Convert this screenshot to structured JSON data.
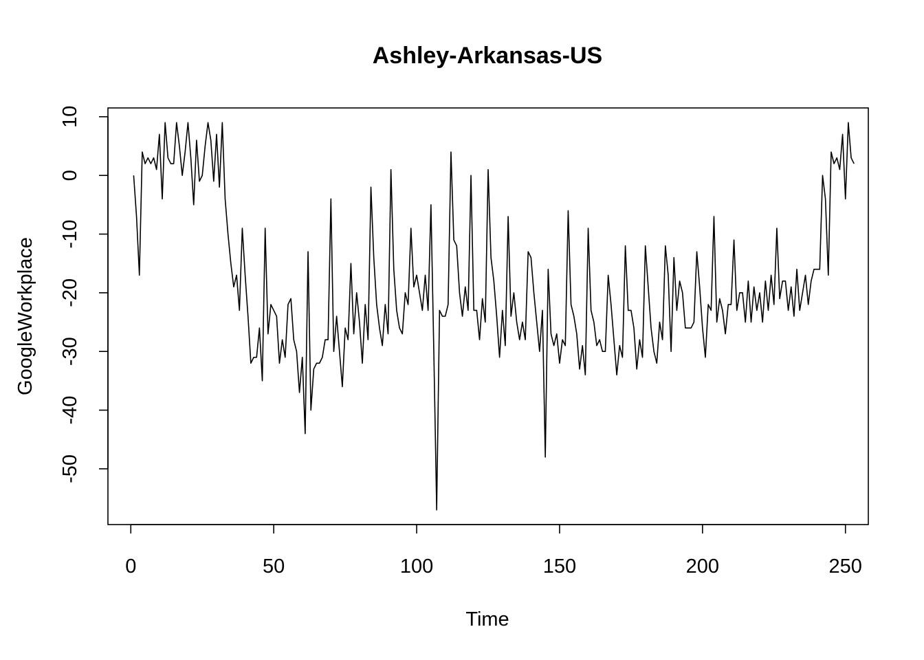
{
  "chart_data": {
    "type": "line",
    "title": "Ashley-Arkansas-US",
    "xlabel": "Time",
    "ylabel": "GoogleWorkplace",
    "xlim": [
      -8,
      258
    ],
    "ylim": [
      -59.5,
      11.5
    ],
    "xticks": [
      0,
      50,
      100,
      150,
      200,
      250
    ],
    "yticks": [
      10,
      0,
      -10,
      -20,
      -30,
      -40,
      -50
    ],
    "grid": false,
    "series": [
      {
        "x_start": 1,
        "values": [
          0,
          -7,
          -17,
          4,
          2,
          3,
          2,
          3,
          1,
          7,
          -4,
          9,
          3,
          2,
          2,
          9,
          5,
          0,
          4,
          9,
          3,
          -5,
          6,
          -1,
          0,
          5,
          9,
          6,
          -1,
          7,
          -2,
          9,
          -4,
          -10,
          -15,
          -19,
          -17,
          -23,
          -9,
          -17,
          -24,
          -32,
          -31,
          -31,
          -26,
          -35,
          -9,
          -27,
          -22,
          -23,
          -24,
          -32,
          -28,
          -31,
          -22,
          -21,
          -28,
          -30,
          -37,
          -31,
          -44,
          -13,
          -40,
          -33,
          -32,
          -32,
          -31,
          -28,
          -28,
          -4,
          -30,
          -24,
          -30,
          -36,
          -26,
          -28,
          -15,
          -27,
          -20,
          -25,
          -32,
          -22,
          -28,
          -2,
          -14,
          -22,
          -26,
          -29,
          -22,
          -27,
          1,
          -16,
          -23,
          -26,
          -27,
          -20,
          -22,
          -9,
          -19,
          -17,
          -20,
          -23,
          -17,
          -23,
          -5,
          -30,
          -57,
          -23,
          -24,
          -24,
          -22,
          4,
          -11,
          -12,
          -20,
          -24,
          -19,
          -23,
          0,
          -23,
          -23,
          -28,
          -21,
          -25,
          1,
          -14,
          -18,
          -24,
          -31,
          -23,
          -29,
          -7,
          -24,
          -20,
          -25,
          -28,
          -25,
          -28,
          -13,
          -14,
          -20,
          -25,
          -30,
          -23,
          -48,
          -16,
          -27,
          -29,
          -27,
          -32,
          -28,
          -29,
          -6,
          -22,
          -24,
          -27,
          -33,
          -29,
          -34,
          -9,
          -23,
          -25,
          -29,
          -28,
          -30,
          -30,
          -17,
          -22,
          -28,
          -34,
          -29,
          -31,
          -12,
          -23,
          -23,
          -26,
          -33,
          -28,
          -31,
          -12,
          -19,
          -26,
          -30,
          -32,
          -25,
          -28,
          -12,
          -17,
          -30,
          -14,
          -23,
          -18,
          -20,
          -26,
          -26,
          -26,
          -25,
          -13,
          -19,
          -26,
          -31,
          -22,
          -23,
          -7,
          -25,
          -21,
          -23,
          -27,
          -22,
          -22,
          -11,
          -23,
          -20,
          -20,
          -25,
          -18,
          -25,
          -19,
          -23,
          -20,
          -25,
          -18,
          -23,
          -17,
          -22,
          -9,
          -21,
          -18,
          -18,
          -23,
          -19,
          -24,
          -16,
          -23,
          -20,
          -17,
          -22,
          -18,
          -16,
          -16,
          -16,
          0,
          -4,
          -17,
          4,
          2,
          3,
          1,
          7,
          -4,
          9,
          3,
          2
        ]
      }
    ]
  }
}
